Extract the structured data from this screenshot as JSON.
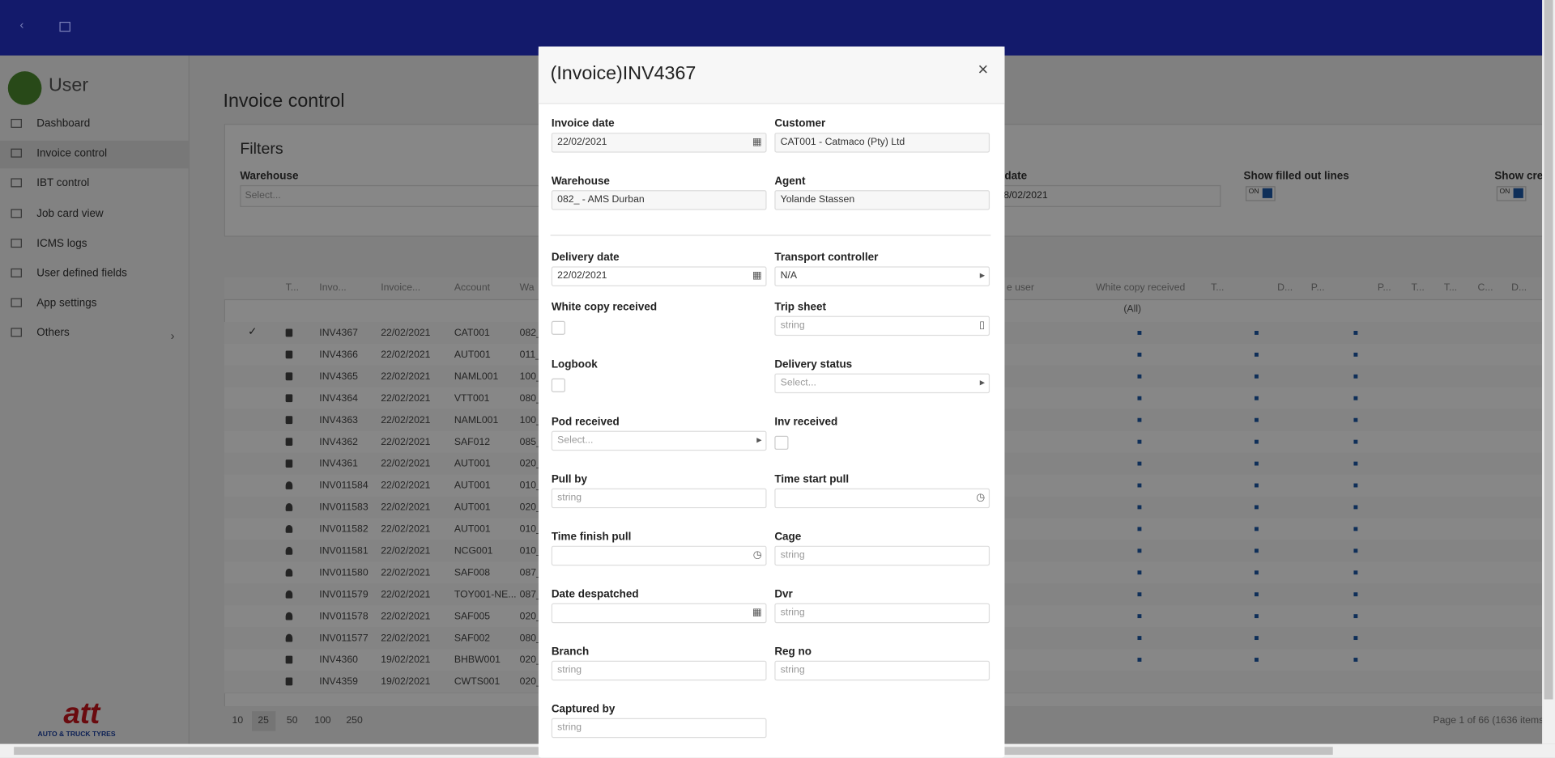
{
  "app": {
    "user": "User",
    "menu": [
      "Dashboard",
      "Invoice control",
      "IBT control",
      "Job card view",
      "ICMS logs",
      "User defined fields",
      "App settings",
      "Others"
    ],
    "active": 1,
    "logo": {
      "mark": "att",
      "tagline": "AUTO & TRUCK TYRES"
    }
  },
  "page": {
    "title": "Invoice control",
    "filters": {
      "title": "Filters",
      "warehouse_label": "Warehouse",
      "warehouse_placeholder": "Select...",
      "date_label": "date",
      "date_value": "8/02/2021",
      "show_filled": "Show filled out lines",
      "show_cre": "Show cre",
      "toggle": "ON"
    },
    "table": {
      "headers": [
        "T...",
        "Invo...",
        "Invoice...",
        "Account",
        "Wa",
        "e user",
        "White copy received",
        "T...",
        "D...",
        "P...",
        "P...",
        "T...",
        "T...",
        "C...",
        "D..."
      ],
      "all_filter": "(All)",
      "rows": [
        {
          "icon": "doc",
          "cells": [
            "INV4367",
            "22/02/2021",
            "CAT001",
            "082_"
          ]
        },
        {
          "icon": "doc",
          "cells": [
            "INV4366",
            "22/02/2021",
            "AUT001",
            "011_"
          ]
        },
        {
          "icon": "doc",
          "cells": [
            "INV4365",
            "22/02/2021",
            "NAML001",
            "100_"
          ]
        },
        {
          "icon": "doc",
          "cells": [
            "INV4364",
            "22/02/2021",
            "VTT001",
            "080_"
          ]
        },
        {
          "icon": "doc",
          "cells": [
            "INV4363",
            "22/02/2021",
            "NAML001",
            "100_"
          ]
        },
        {
          "icon": "doc",
          "cells": [
            "INV4362",
            "22/02/2021",
            "SAF012",
            "085_"
          ]
        },
        {
          "icon": "doc",
          "cells": [
            "INV4361",
            "22/02/2021",
            "AUT001",
            "020_"
          ]
        },
        {
          "icon": "user",
          "cells": [
            "INV011584",
            "22/02/2021",
            "AUT001",
            "010_"
          ]
        },
        {
          "icon": "user",
          "cells": [
            "INV011583",
            "22/02/2021",
            "AUT001",
            "020_"
          ]
        },
        {
          "icon": "user",
          "cells": [
            "INV011582",
            "22/02/2021",
            "AUT001",
            "010_"
          ]
        },
        {
          "icon": "user",
          "cells": [
            "INV011581",
            "22/02/2021",
            "NCG001",
            "010_"
          ]
        },
        {
          "icon": "user",
          "cells": [
            "INV011580",
            "22/02/2021",
            "SAF008",
            "087_"
          ]
        },
        {
          "icon": "user",
          "cells": [
            "INV011579",
            "22/02/2021",
            "TOY001-NE...",
            "087_"
          ]
        },
        {
          "icon": "user",
          "cells": [
            "INV011578",
            "22/02/2021",
            "SAF005",
            "020_"
          ]
        },
        {
          "icon": "user",
          "cells": [
            "INV011577",
            "22/02/2021",
            "SAF002",
            "080_"
          ]
        },
        {
          "icon": "doc",
          "cells": [
            "INV4360",
            "19/02/2021",
            "BHBW001",
            "020_"
          ]
        },
        {
          "icon": "doc",
          "cells": [
            "INV4359",
            "19/02/2021",
            "CWTS001",
            "020_"
          ]
        }
      ],
      "page_sizes": [
        "10",
        "25",
        "50",
        "100",
        "250"
      ],
      "active_size": 1,
      "pager": "Page 1 of 66 (1636 items"
    }
  },
  "modal": {
    "title": "(Invoice)INV4367",
    "close": "×",
    "fields": [
      {
        "label": "Invoice date",
        "text": "22/02/2021",
        "kind": "date-ro"
      },
      {
        "label": "Customer",
        "text": "CAT001 - Catmaco (Pty) Ltd",
        "kind": "ro"
      },
      {
        "label": "Warehouse",
        "text": "082_ - AMS Durban",
        "kind": "ro"
      },
      {
        "label": "Agent",
        "text": "Yolande Stassen",
        "kind": "ro"
      },
      {
        "label": "Delivery date",
        "text": "22/02/2021",
        "kind": "date"
      },
      {
        "label": "Transport controller",
        "text": "N/A",
        "kind": "select"
      },
      {
        "label": "White copy received",
        "kind": "check"
      },
      {
        "label": "Trip sheet",
        "text": "string",
        "kind": "trip"
      },
      {
        "label": "Logbook",
        "kind": "check"
      },
      {
        "label": "Delivery status",
        "text": "Select...",
        "kind": "select"
      },
      {
        "label": "Pod received",
        "text": "Select...",
        "kind": "select"
      },
      {
        "label": "Inv received",
        "kind": "check"
      },
      {
        "label": "Pull by",
        "text": "string",
        "kind": "text"
      },
      {
        "label": "Time start pull",
        "kind": "time"
      },
      {
        "label": "Time finish pull",
        "kind": "time"
      },
      {
        "label": "Cage",
        "text": "string",
        "kind": "text"
      },
      {
        "label": "Date despatched",
        "kind": "date"
      },
      {
        "label": "Dvr",
        "text": "string",
        "kind": "text"
      },
      {
        "label": "Branch",
        "text": "string",
        "kind": "text"
      },
      {
        "label": "Reg no",
        "text": "string",
        "kind": "text"
      },
      {
        "label": "Captured by",
        "text": "string",
        "kind": "text"
      }
    ]
  }
}
